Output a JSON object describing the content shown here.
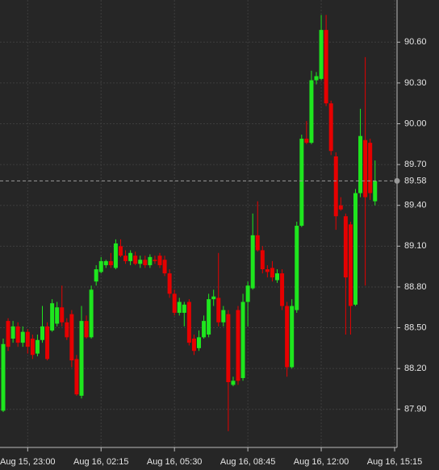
{
  "chart_data": {
    "type": "candlestick",
    "categories": [
      null,
      null,
      null,
      null,
      null,
      "Aug 15, 23:00",
      null,
      null,
      null,
      null,
      null,
      null,
      null,
      null,
      null,
      null,
      null,
      null,
      null,
      null,
      "Aug 16, 02:15",
      null,
      null,
      null,
      null,
      null,
      null,
      null,
      null,
      null,
      null,
      null,
      null,
      null,
      null,
      "Aug 16, 05:30",
      null,
      null,
      null,
      null,
      null,
      null,
      null,
      null,
      null,
      null,
      null,
      null,
      null,
      null,
      "Aug 16, 08:45",
      null,
      null,
      null,
      null,
      null,
      null,
      null,
      null,
      null,
      null,
      null,
      null,
      null,
      null,
      "Aug 16, 12:00",
      null,
      null,
      null,
      null,
      null,
      null,
      null,
      null,
      null,
      null,
      null,
      null,
      null,
      null,
      "Aug 16, 15:15"
    ],
    "open": [
      87.89,
      88.55,
      88.42,
      88.51,
      88.39,
      88.47,
      88.42,
      88.31,
      88.41,
      88.51,
      88.48,
      88.53,
      88.65,
      88.54,
      88.6,
      88.27,
      88.0,
      88.55,
      88.43,
      88.84,
      88.91,
      88.96,
      88.99,
      88.94,
      89.1,
      89.03,
      88.99,
      89.03,
      88.97,
      89.0,
      88.96,
      89.0,
      89.03,
      89.0,
      88.9,
      88.75,
      88.61,
      88.61,
      88.69,
      88.42,
      88.35,
      88.43,
      88.45,
      88.71,
      88.72,
      88.54,
      88.6,
      88.08,
      88.63,
      88.13,
      88.69,
      88.79,
      89.18,
      89.07,
      88.93,
      88.94,
      88.85,
      88.9,
      88.66,
      88.21,
      88.63,
      89.25,
      89.89,
      89.86,
      90.32,
      90.33,
      90.69,
      90.15,
      89.76,
      89.4,
      89.32,
      89.26,
      88.67,
      89.49,
      89.88,
      89.86,
      89.43,
      null,
      null,
      null,
      null
    ],
    "high": [
      88.42,
      88.57,
      88.55,
      88.54,
      88.51,
      88.49,
      88.45,
      88.45,
      88.66,
      88.54,
      88.71,
      88.69,
      88.81,
      88.57,
      88.63,
      88.3,
      88.66,
      88.59,
      88.81,
      88.96,
      89.02,
      89.0,
      89.05,
      89.15,
      89.15,
      89.07,
      89.07,
      89.06,
      89.03,
      89.03,
      89.04,
      89.03,
      89.05,
      89.03,
      88.93,
      88.78,
      88.72,
      88.69,
      88.71,
      88.45,
      88.48,
      88.59,
      88.75,
      88.78,
      89.05,
      88.66,
      88.63,
      88.14,
      88.66,
      88.75,
      88.84,
      89.34,
      89.43,
      89.1,
      88.96,
      88.99,
      88.93,
      88.93,
      88.69,
      88.71,
      89.28,
      89.92,
      90.02,
      90.39,
      90.38,
      90.8,
      90.8,
      90.17,
      89.79,
      89.46,
      89.34,
      89.28,
      89.52,
      90.11,
      90.49,
      89.89,
      89.73,
      null,
      null,
      null,
      null
    ],
    "low": [
      87.88,
      88.33,
      88.39,
      88.36,
      88.36,
      88.31,
      88.27,
      88.29,
      88.39,
      88.26,
      88.47,
      88.51,
      88.51,
      88.41,
      88.21,
      88.0,
      87.98,
      88.42,
      88.42,
      88.81,
      88.9,
      88.94,
      88.94,
      88.93,
      89.02,
      88.97,
      88.96,
      88.96,
      88.94,
      88.94,
      88.94,
      88.97,
      88.94,
      88.88,
      88.72,
      88.59,
      88.59,
      88.51,
      88.37,
      88.3,
      88.33,
      88.42,
      88.43,
      88.66,
      88.51,
      88.51,
      87.74,
      88.07,
      88.08,
      88.11,
      88.51,
      88.78,
      89.06,
      88.9,
      88.87,
      88.84,
      88.83,
      88.63,
      88.14,
      88.2,
      88.61,
      89.24,
      89.85,
      89.85,
      90.29,
      90.32,
      90.13,
      89.77,
      89.22,
      89.36,
      88.45,
      88.45,
      88.66,
      89.46,
      88.81,
      89.44,
      89.4,
      null,
      null,
      null,
      null
    ],
    "close": [
      88.38,
      88.36,
      88.51,
      88.39,
      88.47,
      88.36,
      88.3,
      88.41,
      88.51,
      88.27,
      88.68,
      88.65,
      88.54,
      88.43,
      88.26,
      88.01,
      88.55,
      88.43,
      88.78,
      88.93,
      88.99,
      88.99,
      88.96,
      89.12,
      89.03,
      88.99,
      89.05,
      88.97,
      89.0,
      88.96,
      89.02,
      88.99,
      88.96,
      88.9,
      88.75,
      88.61,
      88.69,
      88.67,
      88.39,
      88.33,
      88.43,
      88.55,
      88.71,
      88.73,
      88.54,
      88.63,
      88.1,
      88.11,
      88.11,
      88.69,
      88.81,
      89.18,
      89.07,
      88.93,
      88.91,
      88.87,
      88.9,
      88.66,
      88.21,
      88.66,
      89.25,
      89.89,
      89.86,
      90.32,
      90.35,
      90.69,
      90.15,
      89.8,
      89.32,
      89.37,
      88.87,
      88.66,
      89.49,
      89.91,
      89.46,
      89.49,
      89.58,
      null,
      null,
      null,
      null
    ],
    "up_color": "#1ee61e",
    "down_color": "#e60000",
    "ylim": [
      87.62,
      90.91
    ],
    "yticks": [
      {
        "value": 87.9,
        "label": "87.90"
      },
      {
        "value": 88.2,
        "label": "88.20"
      },
      {
        "value": 88.5,
        "label": "88.50"
      },
      {
        "value": 88.8,
        "label": "88.80"
      },
      {
        "value": 89.1,
        "label": "89.10"
      },
      {
        "value": 89.4,
        "label": "89.40"
      },
      {
        "value": 89.7,
        "label": "89.70"
      },
      {
        "value": 90.0,
        "label": "90.00"
      },
      {
        "value": 90.3,
        "label": "90.30"
      },
      {
        "value": 90.6,
        "label": "90.60"
      }
    ],
    "last_price": {
      "value": 89.58,
      "label": "89.58"
    },
    "grid": true
  }
}
